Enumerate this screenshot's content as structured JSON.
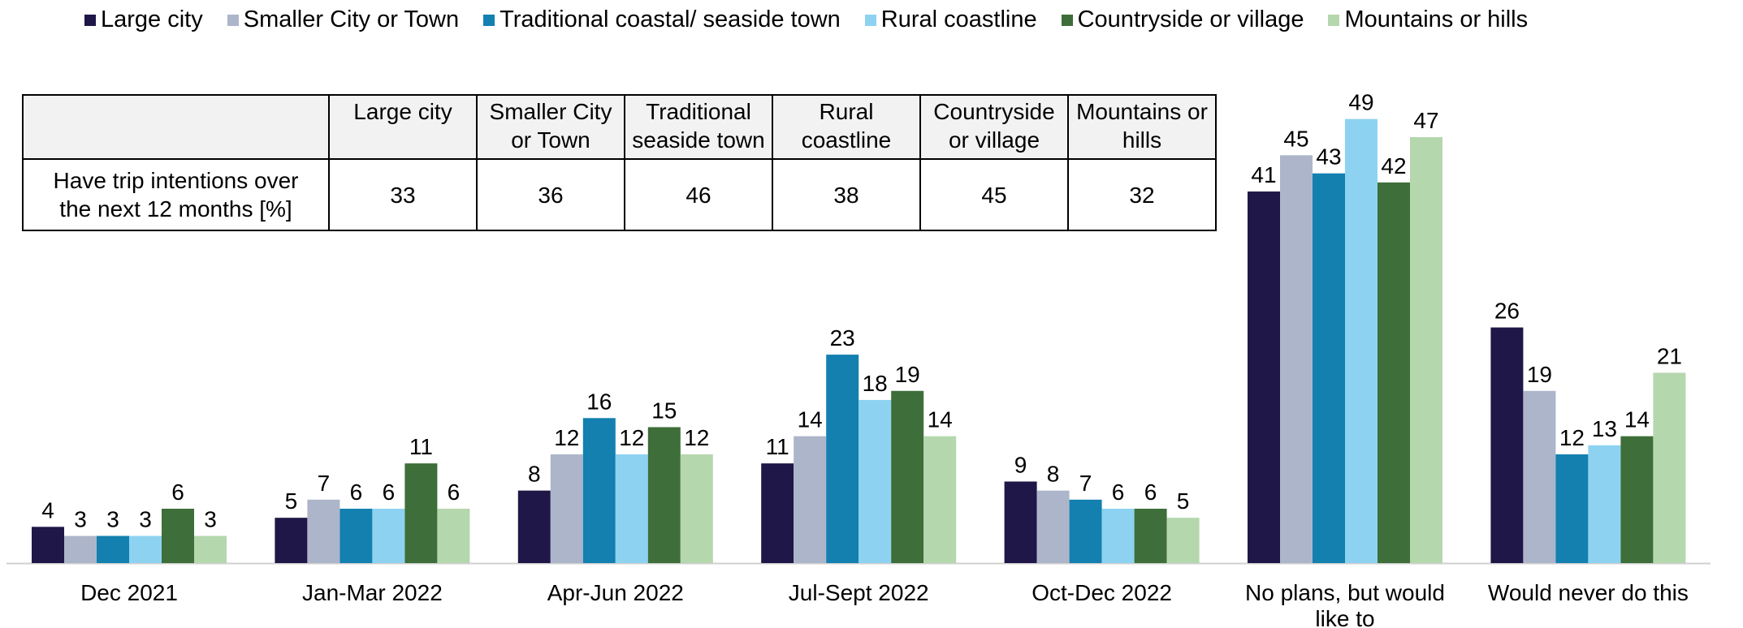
{
  "legend": [
    {
      "label": "Large city",
      "color": "#1f1747"
    },
    {
      "label": "Smaller City or Town",
      "color": "#adb5ca"
    },
    {
      "label": "Traditional coastal/ seaside town",
      "color": "#1380b0"
    },
    {
      "label": "Rural coastline",
      "color": "#8dd3f1"
    },
    {
      "label": "Countryside or village",
      "color": "#3e6e39"
    },
    {
      "label": "Mountains or hills",
      "color": "#b5d7ad"
    }
  ],
  "table": {
    "columns": [
      [
        "Large city"
      ],
      [
        "Smaller City",
        "or Town"
      ],
      [
        "Traditional",
        "seaside town"
      ],
      [
        "Rural",
        "coastline"
      ],
      [
        "Countryside",
        "or village"
      ],
      [
        "Mountains or",
        "hills"
      ]
    ],
    "row_label": [
      "Have trip intentions over",
      "the next 12 months [%]"
    ],
    "values": [
      "33",
      "36",
      "46",
      "38",
      "45",
      "32"
    ]
  },
  "chart_data": {
    "type": "bar",
    "categories": [
      "Dec 2021",
      "Jan-Mar 2022",
      "Apr-Jun 2022",
      "Jul-Sept 2022",
      "Oct-Dec 2022",
      "No plans, but would like to",
      "Would never do this"
    ],
    "category_lines": [
      [
        "Dec 2021"
      ],
      [
        "Jan-Mar 2022"
      ],
      [
        "Apr-Jun 2022"
      ],
      [
        "Jul-Sept 2022"
      ],
      [
        "Oct-Dec 2022"
      ],
      [
        "No plans, but would",
        "like to"
      ],
      [
        "Would never do this"
      ]
    ],
    "series": [
      {
        "name": "Large city",
        "color": "#1f1747",
        "values": [
          4,
          5,
          8,
          11,
          9,
          41,
          26
        ]
      },
      {
        "name": "Smaller City or Town",
        "color": "#adb5ca",
        "values": [
          3,
          7,
          12,
          14,
          8,
          45,
          19
        ]
      },
      {
        "name": "Traditional coastal/ seaside town",
        "color": "#1380b0",
        "values": [
          3,
          6,
          16,
          23,
          7,
          43,
          12
        ]
      },
      {
        "name": "Rural coastline",
        "color": "#8dd3f1",
        "values": [
          3,
          6,
          12,
          18,
          6,
          49,
          13
        ]
      },
      {
        "name": "Countryside or village",
        "color": "#3e6e39",
        "values": [
          6,
          11,
          15,
          19,
          6,
          42,
          14
        ]
      },
      {
        "name": "Mountains or hills",
        "color": "#b5d7ad",
        "values": [
          3,
          6,
          12,
          14,
          5,
          47,
          21
        ]
      }
    ],
    "ylim": [
      0,
      50
    ],
    "grid": false,
    "legend_position": "top"
  }
}
